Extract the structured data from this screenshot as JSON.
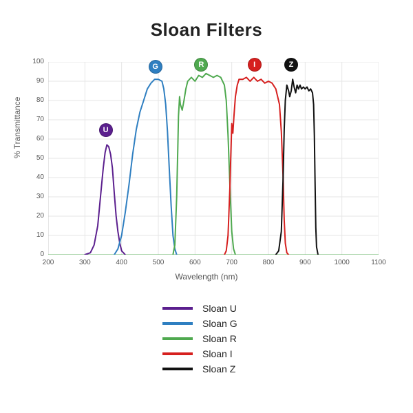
{
  "chart": {
    "type": "line",
    "title": "Sloan Filters",
    "title_fontsize": 26,
    "xlabel": "Wavelength (nm)",
    "ylabel": "% Transmittance",
    "label_fontsize": 12,
    "tick_fontsize": 10,
    "background_color": "#ffffff",
    "grid_color": "#e6e6e6",
    "axis_color": "#cccccc",
    "line_width": 2,
    "xlim": [
      200,
      1100
    ],
    "ylim": [
      0,
      100
    ],
    "xtick_step": 100,
    "ytick_step": 10,
    "xticks": [
      200,
      300,
      400,
      500,
      600,
      700,
      800,
      900,
      1000,
      1100
    ],
    "yticks": [
      0,
      10,
      20,
      30,
      40,
      50,
      60,
      70,
      80,
      90,
      100
    ],
    "markers": [
      {
        "letter": "U",
        "x": 355,
        "y": 65,
        "bg": "#5b1f8e",
        "fg": "#ffffff"
      },
      {
        "letter": "G",
        "x": 490,
        "y": 98,
        "bg": "#2f7fc1",
        "fg": "#ffffff"
      },
      {
        "letter": "R",
        "x": 615,
        "y": 99,
        "bg": "#4fa94f",
        "fg": "#ffffff"
      },
      {
        "letter": "I",
        "x": 760,
        "y": 99,
        "bg": "#d6201f",
        "fg": "#ffffff"
      },
      {
        "letter": "Z",
        "x": 860,
        "y": 99,
        "bg": "#111111",
        "fg": "#ffffff"
      }
    ],
    "series": [
      {
        "name": "Sloan U",
        "color": "#5b1f8e",
        "points": [
          [
            300,
            0
          ],
          [
            315,
            1
          ],
          [
            325,
            5
          ],
          [
            335,
            15
          ],
          [
            345,
            35
          ],
          [
            350,
            45
          ],
          [
            355,
            53
          ],
          [
            360,
            57
          ],
          [
            365,
            56
          ],
          [
            370,
            52
          ],
          [
            375,
            45
          ],
          [
            380,
            32
          ],
          [
            385,
            20
          ],
          [
            390,
            12
          ],
          [
            395,
            6
          ],
          [
            400,
            2
          ],
          [
            410,
            0
          ]
        ]
      },
      {
        "name": "Sloan G",
        "color": "#2f7fc1",
        "points": [
          [
            380,
            0
          ],
          [
            390,
            3
          ],
          [
            400,
            10
          ],
          [
            410,
            22
          ],
          [
            420,
            36
          ],
          [
            430,
            52
          ],
          [
            440,
            65
          ],
          [
            450,
            74
          ],
          [
            460,
            80
          ],
          [
            470,
            86
          ],
          [
            480,
            89
          ],
          [
            490,
            91
          ],
          [
            500,
            91
          ],
          [
            510,
            90
          ],
          [
            515,
            86
          ],
          [
            520,
            78
          ],
          [
            525,
            64
          ],
          [
            530,
            44
          ],
          [
            535,
            25
          ],
          [
            540,
            10
          ],
          [
            545,
            3
          ],
          [
            550,
            0
          ]
        ]
      },
      {
        "name": "Sloan R",
        "color": "#4fa94f",
        "points": [
          [
            540,
            0
          ],
          [
            545,
            5
          ],
          [
            550,
            30
          ],
          [
            553,
            55
          ],
          [
            555,
            72
          ],
          [
            558,
            82
          ],
          [
            560,
            78
          ],
          [
            565,
            75
          ],
          [
            570,
            80
          ],
          [
            575,
            86
          ],
          [
            580,
            90
          ],
          [
            590,
            92
          ],
          [
            600,
            90
          ],
          [
            610,
            93
          ],
          [
            620,
            92
          ],
          [
            630,
            94
          ],
          [
            640,
            93
          ],
          [
            650,
            92
          ],
          [
            660,
            93
          ],
          [
            670,
            92
          ],
          [
            680,
            88
          ],
          [
            685,
            80
          ],
          [
            690,
            62
          ],
          [
            695,
            36
          ],
          [
            700,
            12
          ],
          [
            705,
            3
          ],
          [
            710,
            0
          ]
        ]
      },
      {
        "name": "Sloan I",
        "color": "#d6201f",
        "points": [
          [
            680,
            0
          ],
          [
            685,
            2
          ],
          [
            690,
            10
          ],
          [
            695,
            35
          ],
          [
            698,
            55
          ],
          [
            700,
            68
          ],
          [
            703,
            63
          ],
          [
            706,
            72
          ],
          [
            710,
            82
          ],
          [
            715,
            88
          ],
          [
            720,
            91
          ],
          [
            730,
            91
          ],
          [
            740,
            92
          ],
          [
            750,
            90
          ],
          [
            760,
            92
          ],
          [
            770,
            90
          ],
          [
            780,
            91
          ],
          [
            790,
            89
          ],
          [
            800,
            90
          ],
          [
            810,
            89
          ],
          [
            820,
            86
          ],
          [
            830,
            78
          ],
          [
            835,
            64
          ],
          [
            840,
            40
          ],
          [
            843,
            18
          ],
          [
            846,
            6
          ],
          [
            850,
            1
          ],
          [
            855,
            0
          ]
        ]
      },
      {
        "name": "Sloan Z",
        "color": "#111111",
        "points": [
          [
            820,
            0
          ],
          [
            828,
            2
          ],
          [
            835,
            12
          ],
          [
            840,
            40
          ],
          [
            843,
            65
          ],
          [
            846,
            80
          ],
          [
            850,
            88
          ],
          [
            855,
            85
          ],
          [
            858,
            82
          ],
          [
            862,
            85
          ],
          [
            866,
            91
          ],
          [
            870,
            87
          ],
          [
            874,
            84
          ],
          [
            878,
            88
          ],
          [
            882,
            86
          ],
          [
            886,
            88
          ],
          [
            890,
            86
          ],
          [
            895,
            87
          ],
          [
            900,
            86
          ],
          [
            905,
            87
          ],
          [
            910,
            85
          ],
          [
            915,
            86
          ],
          [
            920,
            84
          ],
          [
            923,
            78
          ],
          [
            925,
            62
          ],
          [
            927,
            38
          ],
          [
            929,
            14
          ],
          [
            931,
            4
          ],
          [
            935,
            0
          ]
        ]
      }
    ],
    "baseline": {
      "color": "#4fa94f",
      "width": 1,
      "points": [
        [
          200,
          0
        ],
        [
          1100,
          0
        ]
      ]
    }
  },
  "legend": {
    "items": [
      {
        "label": "Sloan U",
        "color": "#5b1f8e"
      },
      {
        "label": "Sloan G",
        "color": "#2f7fc1"
      },
      {
        "label": "Sloan R",
        "color": "#4fa94f"
      },
      {
        "label": "Sloan I",
        "color": "#d6201f"
      },
      {
        "label": "Sloan Z",
        "color": "#111111"
      }
    ]
  }
}
